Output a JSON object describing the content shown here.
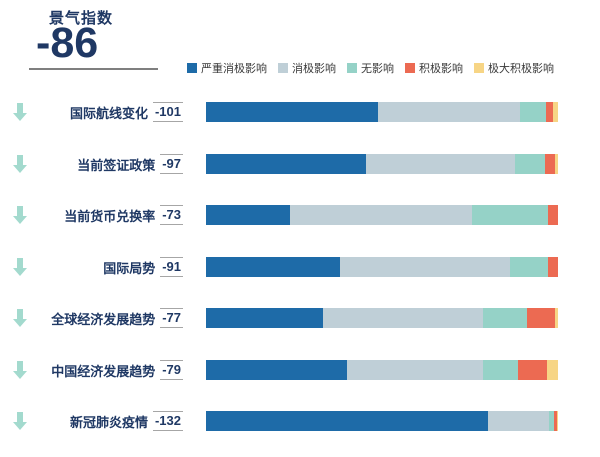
{
  "header": {
    "title": "景气指数",
    "score": "-86"
  },
  "chart_data": {
    "type": "bar",
    "orientation": "horizontal",
    "stacked": true,
    "value_unit": "percent",
    "headline_metric": {
      "label": "景气指数",
      "value": -86
    },
    "legend_position": "top",
    "grid": false,
    "series": [
      {
        "name": "严重消极影响",
        "color": "#1E6BA8"
      },
      {
        "name": "消极影响",
        "color": "#BFCFD7"
      },
      {
        "name": "无影响",
        "color": "#95D2C7"
      },
      {
        "name": "积极影响",
        "color": "#EC6A52"
      },
      {
        "name": "极大积极影响",
        "color": "#F7D585"
      }
    ],
    "rows": [
      {
        "label": "国际航线变化",
        "score": "-101",
        "trend": "down",
        "segments": [
          48.9,
          40.3,
          7.4,
          2.0,
          1.4
        ]
      },
      {
        "label": "当前签证政策",
        "score": "-97",
        "trend": "down",
        "segments": [
          45.5,
          42.3,
          8.5,
          2.8,
          0.9
        ]
      },
      {
        "label": "当前货币兑换率",
        "score": "-73",
        "trend": "down",
        "segments": [
          23.9,
          51.7,
          21.6,
          2.8,
          0.0
        ]
      },
      {
        "label": "国际局势",
        "score": "-91",
        "trend": "down",
        "segments": [
          38.1,
          48.3,
          10.8,
          2.8,
          0.0
        ]
      },
      {
        "label": "全球经济发展趋势",
        "score": "-77",
        "trend": "down",
        "segments": [
          33.2,
          45.5,
          12.5,
          7.9,
          0.9
        ]
      },
      {
        "label": "中国经济发展趋势",
        "score": "-79",
        "trend": "down",
        "segments": [
          40.1,
          38.6,
          9.9,
          8.3,
          3.1
        ]
      },
      {
        "label": "新冠肺炎疫情",
        "score": "-132",
        "trend": "down",
        "segments": [
          80.1,
          17.4,
          1.5,
          0.7,
          0.3
        ]
      }
    ],
    "colors": {
      "navy_text": "#1F3864",
      "trend_arrow": "#A3DACE",
      "legend_text": "#3A3A3A",
      "score_rule": "#A6A6A6",
      "header_rule": "#7F7F7F"
    }
  }
}
